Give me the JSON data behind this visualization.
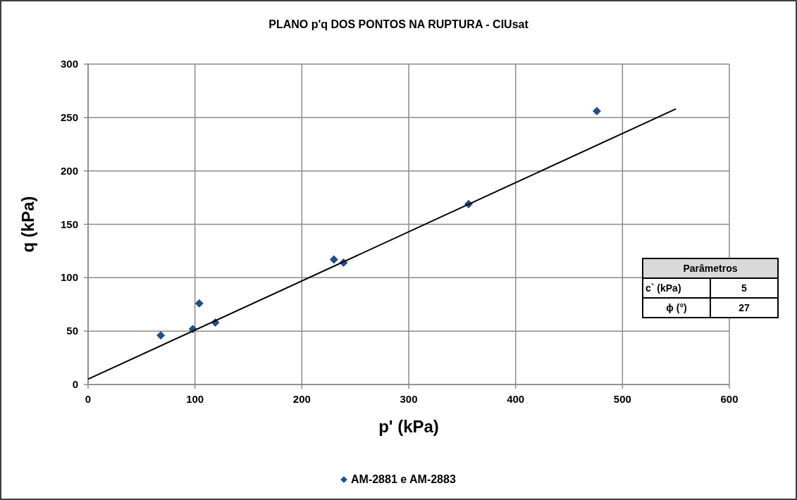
{
  "chart_data": {
    "type": "scatter",
    "title": "PLANO p'q  DOS PONTOS NA RUPTURA - CIUsat",
    "xlabel": "p' (kPa)",
    "ylabel": "q (kPa)",
    "xlim": [
      0,
      600
    ],
    "xticks": [
      0,
      100,
      200,
      300,
      400,
      500,
      600
    ],
    "ylim": [
      0,
      300
    ],
    "yticks": [
      0,
      50,
      100,
      150,
      200,
      250,
      300
    ],
    "grid": true,
    "legend": "bottom",
    "series": [
      {
        "name": "AM-2881 e AM-2883",
        "color": "#1f4e8c",
        "marker": "diamond",
        "x": [
          68,
          98,
          104,
          119,
          230,
          239,
          356,
          476
        ],
        "values": [
          46,
          52,
          76,
          58,
          117,
          114,
          169,
          256
        ]
      },
      {
        "type": "line",
        "color": "#000000",
        "marker": "none",
        "line_style": "solid",
        "x": [
          0,
          550
        ],
        "values": [
          5,
          258
        ]
      }
    ],
    "annotations": [
      "Parâmetros",
      "c` (kPa)",
      "5",
      "ϕ (°)",
      "27"
    ]
  }
}
